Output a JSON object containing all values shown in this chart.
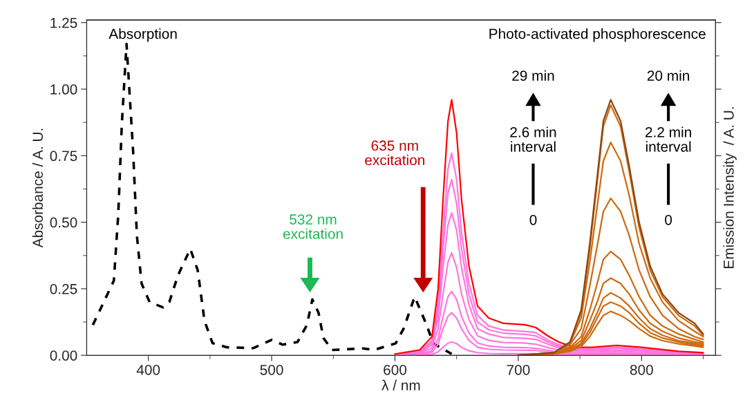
{
  "chart_data": {
    "type": "line",
    "xlabel": "λ / nm",
    "ylabel": "Absorbance / A. U.",
    "y2label": "Emission Intensity  / A. U.",
    "xlim": [
      350,
      860
    ],
    "ylim": [
      0,
      1.26
    ],
    "xticks": [
      400,
      500,
      600,
      700,
      800,
      {
        "value": 450,
        "label": null
      },
      {
        "value": 550,
        "label": null
      },
      {
        "value": 650,
        "label": null
      },
      {
        "value": 750,
        "label": null
      },
      {
        "value": 850,
        "label": null
      }
    ],
    "yticks": [
      {
        "value": 0,
        "label": "0.00"
      },
      {
        "value": 0.25,
        "label": "0.25"
      },
      {
        "value": 0.5,
        "label": "0.50"
      },
      {
        "value": 0.75,
        "label": "0.75"
      },
      {
        "value": 1.0,
        "label": "1.00"
      },
      {
        "value": 1.25,
        "label": "1.25"
      },
      {
        "value": 0.125,
        "label": null
      },
      {
        "value": 0.375,
        "label": null
      },
      {
        "value": 0.625,
        "label": null
      },
      {
        "value": 0.875,
        "label": null
      },
      {
        "value": 1.125,
        "label": null
      }
    ],
    "grid": false,
    "legend": false,
    "marker": "none",
    "series": [
      {
        "color": "#000000",
        "line_style": "dashed",
        "x": [
          355,
          372,
          375.6,
          378.5,
          382.3,
          387.6,
          390.7,
          394.5,
          401,
          412,
          417,
          424,
          434,
          440,
          445.5,
          452,
          464,
          485,
          500,
          509,
          521,
          528.6,
          533,
          538,
          542,
          549,
          574,
          583,
          600.6,
          607,
          616,
          626,
          631,
          646
        ],
        "values": [
          0.114,
          0.28,
          0.53,
          0.87,
          1.17,
          0.77,
          0.45,
          0.27,
          0.2,
          0.18,
          0.2,
          0.3,
          0.4,
          0.32,
          0.13,
          0.046,
          0.03,
          0.027,
          0.058,
          0.04,
          0.05,
          0.114,
          0.21,
          0.16,
          0.065,
          0.02,
          0.026,
          0.02,
          0.045,
          0.1,
          0.22,
          0.11,
          0.045,
          0.005
        ]
      },
      {
        "color": "#ff77dd",
        "x": [
          600,
          620,
          630,
          635,
          639,
          643,
          646,
          650,
          654,
          660,
          667,
          676,
          688,
          705,
          714,
          725,
          733,
          745,
          760,
          780,
          800,
          830,
          850
        ],
        "values": [
          0,
          0.001,
          0.004,
          0.013,
          0.03,
          0.046,
          0.05,
          0.044,
          0.03,
          0.017,
          0.01,
          0.007,
          0.006,
          0.006,
          0.006,
          0.004,
          0.003,
          0.002,
          0.002,
          0.002,
          0.002,
          0.001,
          0.001
        ]
      },
      {
        "color": "#ff77dd",
        "x": [
          600,
          620,
          630,
          635,
          639,
          643,
          646,
          650,
          654,
          660,
          667,
          676,
          688,
          705,
          714,
          725,
          733,
          745,
          760,
          780,
          800,
          830,
          850
        ],
        "values": [
          0.001,
          0.003,
          0.012,
          0.042,
          0.1,
          0.147,
          0.16,
          0.14,
          0.1,
          0.056,
          0.03,
          0.023,
          0.02,
          0.019,
          0.018,
          0.012,
          0.008,
          0.005,
          0.005,
          0.006,
          0.005,
          0.003,
          0.002
        ]
      },
      {
        "color": "#ff77dd",
        "x": [
          600,
          620,
          630,
          635,
          639,
          643,
          646,
          650,
          654,
          660,
          667,
          676,
          688,
          705,
          714,
          725,
          733,
          745,
          760,
          780,
          800,
          830,
          850
        ],
        "values": [
          0.001,
          0.005,
          0.018,
          0.062,
          0.146,
          0.22,
          0.24,
          0.21,
          0.146,
          0.084,
          0.046,
          0.035,
          0.03,
          0.029,
          0.026,
          0.018,
          0.012,
          0.007,
          0.007,
          0.009,
          0.007,
          0.004,
          0.002
        ]
      },
      {
        "color": "#ff77dd",
        "x": [
          600,
          620,
          630,
          635,
          639,
          643,
          646,
          650,
          654,
          660,
          667,
          676,
          688,
          705,
          714,
          725,
          733,
          745,
          760,
          780,
          800,
          830,
          850
        ],
        "values": [
          0.002,
          0.008,
          0.028,
          0.1,
          0.23,
          0.35,
          0.385,
          0.33,
          0.23,
          0.135,
          0.073,
          0.056,
          0.048,
          0.046,
          0.042,
          0.028,
          0.02,
          0.012,
          0.012,
          0.015,
          0.012,
          0.006,
          0.004
        ]
      },
      {
        "color": "#ff77dd",
        "x": [
          600,
          620,
          630,
          635,
          639,
          643,
          646,
          650,
          654,
          660,
          667,
          676,
          688,
          705,
          714,
          725,
          733,
          745,
          760,
          780,
          800,
          830,
          850
        ],
        "values": [
          0.003,
          0.01,
          0.04,
          0.14,
          0.33,
          0.49,
          0.535,
          0.47,
          0.33,
          0.19,
          0.1,
          0.08,
          0.067,
          0.064,
          0.06,
          0.04,
          0.028,
          0.017,
          0.017,
          0.02,
          0.017,
          0.009,
          0.005
        ]
      },
      {
        "color": "#ff77dd",
        "x": [
          600,
          620,
          630,
          635,
          639,
          643,
          646,
          650,
          654,
          660,
          667,
          676,
          688,
          705,
          714,
          725,
          733,
          745,
          760,
          780,
          800,
          830,
          850
        ],
        "values": [
          0.003,
          0.013,
          0.048,
          0.17,
          0.4,
          0.61,
          0.66,
          0.57,
          0.4,
          0.23,
          0.125,
          0.096,
          0.083,
          0.079,
          0.073,
          0.048,
          0.034,
          0.02,
          0.02,
          0.026,
          0.02,
          0.011,
          0.007
        ]
      },
      {
        "color": "#ff77dd",
        "x": [
          600,
          620,
          630,
          635,
          639,
          643,
          646,
          650,
          654,
          660,
          667,
          676,
          688,
          705,
          714,
          725,
          733,
          745,
          760,
          780,
          800,
          830,
          850
        ],
        "values": [
          0.004,
          0.015,
          0.055,
          0.2,
          0.46,
          0.7,
          0.76,
          0.66,
          0.46,
          0.27,
          0.15,
          0.11,
          0.095,
          0.09,
          0.085,
          0.055,
          0.04,
          0.024,
          0.024,
          0.03,
          0.024,
          0.012,
          0.008
        ]
      },
      {
        "color": "#ff0000",
        "x": [
          600,
          620,
          630,
          635,
          639,
          643,
          646,
          650,
          654,
          660,
          667,
          676,
          688,
          705,
          714,
          725,
          733,
          745,
          760,
          780,
          800,
          830,
          850
        ],
        "values": [
          0.005,
          0.02,
          0.07,
          0.25,
          0.585,
          0.88,
          0.96,
          0.835,
          0.585,
          0.335,
          0.185,
          0.14,
          0.12,
          0.115,
          0.105,
          0.07,
          0.05,
          0.03,
          0.03,
          0.037,
          0.03,
          0.015,
          0.01
        ]
      },
      {
        "color": "#cc6a10",
        "x": [
          700,
          729,
          742,
          751,
          758,
          764,
          769,
          775,
          783,
          790,
          798,
          807,
          817,
          830,
          843,
          850
        ],
        "values": [
          0,
          0.005,
          0.015,
          0.033,
          0.07,
          0.115,
          0.15,
          0.165,
          0.15,
          0.13,
          0.1,
          0.072,
          0.055,
          0.043,
          0.035,
          0.03
        ]
      },
      {
        "color": "#cc6a10",
        "x": [
          700,
          729,
          742,
          751,
          758,
          764,
          769,
          775,
          783,
          790,
          798,
          807,
          817,
          830,
          843,
          850
        ],
        "values": [
          0,
          0.006,
          0.018,
          0.04,
          0.085,
          0.14,
          0.185,
          0.2,
          0.185,
          0.16,
          0.12,
          0.085,
          0.065,
          0.05,
          0.04,
          0.035
        ]
      },
      {
        "color": "#cc6a10",
        "x": [
          700,
          729,
          742,
          751,
          758,
          764,
          769,
          775,
          783,
          790,
          798,
          807,
          817,
          830,
          843,
          850
        ],
        "values": [
          0,
          0.007,
          0.02,
          0.045,
          0.1,
          0.16,
          0.215,
          0.235,
          0.215,
          0.185,
          0.14,
          0.1,
          0.075,
          0.055,
          0.045,
          0.04
        ]
      },
      {
        "color": "#cc6a10",
        "x": [
          700,
          729,
          742,
          751,
          758,
          764,
          769,
          775,
          783,
          790,
          798,
          807,
          817,
          830,
          843,
          850
        ],
        "values": [
          0,
          0.008,
          0.025,
          0.055,
          0.13,
          0.2,
          0.27,
          0.29,
          0.27,
          0.23,
          0.17,
          0.12,
          0.09,
          0.065,
          0.05,
          0.045
        ]
      },
      {
        "color": "#cc6a10",
        "x": [
          700,
          729,
          742,
          751,
          758,
          764,
          769,
          775,
          783,
          790,
          798,
          807,
          817,
          830,
          843,
          850
        ],
        "values": [
          0,
          0.01,
          0.03,
          0.07,
          0.17,
          0.27,
          0.36,
          0.39,
          0.36,
          0.3,
          0.22,
          0.15,
          0.11,
          0.08,
          0.06,
          0.05
        ]
      },
      {
        "color": "#cc6a10",
        "x": [
          700,
          729,
          742,
          751,
          758,
          764,
          769,
          775,
          783,
          790,
          798,
          807,
          817,
          830,
          843,
          850
        ],
        "values": [
          0,
          0.01,
          0.04,
          0.1,
          0.26,
          0.41,
          0.54,
          0.59,
          0.54,
          0.45,
          0.32,
          0.22,
          0.15,
          0.1,
          0.07,
          0.06
        ]
      },
      {
        "color": "#cc6a10",
        "x": [
          700,
          729,
          742,
          751,
          758,
          764,
          769,
          775,
          783,
          790,
          798,
          807,
          817,
          830,
          843,
          850
        ],
        "values": [
          0,
          0.01,
          0.045,
          0.14,
          0.35,
          0.56,
          0.73,
          0.8,
          0.73,
          0.6,
          0.42,
          0.29,
          0.2,
          0.13,
          0.09,
          0.07
        ]
      },
      {
        "color": "#cc6a10",
        "x": [
          700,
          729,
          742,
          751,
          758,
          764,
          769,
          775,
          783,
          790,
          798,
          807,
          817,
          830,
          843,
          850
        ],
        "values": [
          0,
          0.01,
          0.05,
          0.16,
          0.4,
          0.65,
          0.86,
          0.94,
          0.86,
          0.69,
          0.48,
          0.32,
          0.22,
          0.15,
          0.11,
          0.075
        ]
      },
      {
        "color": "#8b4513",
        "x": [
          700,
          729,
          742,
          751,
          758,
          764,
          769,
          775,
          783,
          790,
          798,
          807,
          817,
          830,
          843,
          850
        ],
        "values": [
          0,
          0.01,
          0.05,
          0.17,
          0.42,
          0.67,
          0.88,
          0.96,
          0.88,
          0.71,
          0.5,
          0.335,
          0.23,
          0.16,
          0.12,
          0.08
        ]
      }
    ],
    "annotations": [
      "Absorption",
      "Photo-activated phosphorescence",
      "532 nm\nexcitation",
      "635 nm\nexcitation",
      "29 min",
      "2.6 min\ninterval",
      "0",
      "20 min",
      "2.2 min\ninterval",
      "0"
    ]
  }
}
